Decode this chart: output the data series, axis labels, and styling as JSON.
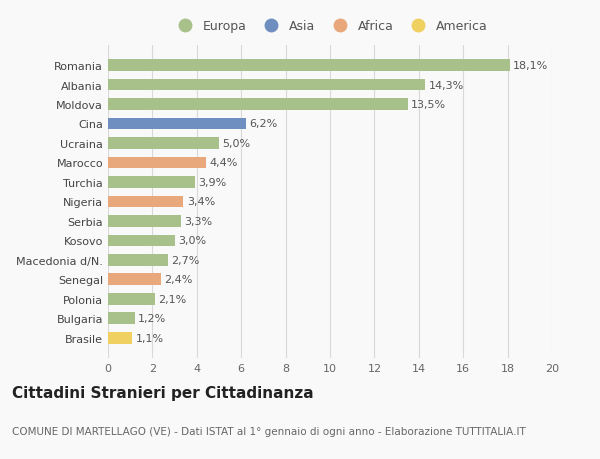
{
  "categories": [
    "Brasile",
    "Bulgaria",
    "Polonia",
    "Senegal",
    "Macedonia d/N.",
    "Kosovo",
    "Serbia",
    "Nigeria",
    "Turchia",
    "Marocco",
    "Ucraina",
    "Cina",
    "Moldova",
    "Albania",
    "Romania"
  ],
  "values": [
    1.1,
    1.2,
    2.1,
    2.4,
    2.7,
    3.0,
    3.3,
    3.4,
    3.9,
    4.4,
    5.0,
    6.2,
    13.5,
    14.3,
    18.1
  ],
  "labels": [
    "1,1%",
    "1,2%",
    "2,1%",
    "2,4%",
    "2,7%",
    "3,0%",
    "3,3%",
    "3,4%",
    "3,9%",
    "4,4%",
    "5,0%",
    "6,2%",
    "13,5%",
    "14,3%",
    "18,1%"
  ],
  "continent": [
    "America",
    "Europa",
    "Europa",
    "Africa",
    "Europa",
    "Europa",
    "Europa",
    "Africa",
    "Europa",
    "Africa",
    "Europa",
    "Asia",
    "Europa",
    "Europa",
    "Europa"
  ],
  "colors": {
    "Europa": "#a8c08a",
    "Asia": "#6e8fbf",
    "Africa": "#e8a87c",
    "America": "#f0d060"
  },
  "bar_height": 0.6,
  "xlim": [
    0,
    20
  ],
  "xticks": [
    0,
    2,
    4,
    6,
    8,
    10,
    12,
    14,
    16,
    18,
    20
  ],
  "title": "Cittadini Stranieri per Cittadinanza",
  "subtitle": "COMUNE DI MARTELLAGO (VE) - Dati ISTAT al 1° gennaio di ogni anno - Elaborazione TUTTITALIA.IT",
  "background_color": "#f9f9f9",
  "grid_color": "#d8d8d8",
  "label_fontsize": 8.0,
  "tick_fontsize": 8.0,
  "title_fontsize": 11,
  "subtitle_fontsize": 7.5,
  "legend_entries": [
    "Europa",
    "Asia",
    "Africa",
    "America"
  ]
}
